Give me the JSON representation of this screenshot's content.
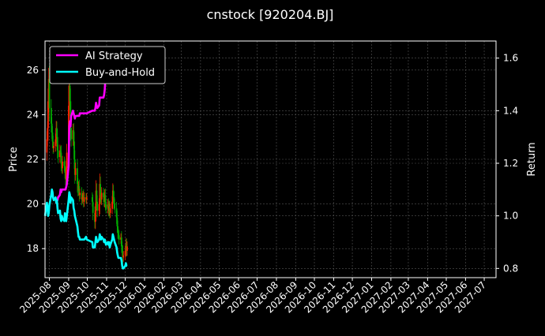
{
  "chart_data": {
    "type": "line",
    "title": "cnstock [920204.BJ]",
    "ylabel_left": "Price",
    "ylabel_right": "Return",
    "grid": true,
    "legend_position": "top-left",
    "colors": {
      "background": "#000000",
      "foreground": "#ffffff",
      "grid": "#555555",
      "candle_up": "#ff2200",
      "candle_down": "#00aa00",
      "ai_strategy": "#ff00ff",
      "buy_hold": "#00ffff"
    },
    "x_range": [
      "2025-07-25",
      "2027-07-20"
    ],
    "price_ylim": [
      16.7,
      27.3
    ],
    "return_ylim": [
      0.765,
      1.665
    ],
    "x_tick_labels": [
      "2025-08",
      "2025-09",
      "2025-10",
      "2025-11",
      "2025-12",
      "2026-01",
      "2026-02",
      "2026-03",
      "2026-04",
      "2026-05",
      "2026-06",
      "2026-07",
      "2026-08",
      "2026-09",
      "2026-10",
      "2026-11",
      "2026-12",
      "2027-01",
      "2027-02",
      "2027-03",
      "2027-04",
      "2027-05",
      "2027-06",
      "2027-07"
    ],
    "price_ticks": [
      "18",
      "20",
      "22",
      "24",
      "26"
    ],
    "return_ticks": [
      "0.8",
      "1.0",
      "1.2",
      "1.4",
      "1.6"
    ],
    "price_close": [
      {
        "date": "2025-07-25",
        "close": 22.3
      },
      {
        "date": "2025-07-28",
        "close": 22.9
      },
      {
        "date": "2025-07-29",
        "close": 23.4
      },
      {
        "date": "2025-07-30",
        "close": 24.6
      },
      {
        "date": "2025-07-31",
        "close": 25.6
      },
      {
        "date": "2025-08-01",
        "close": 24.3
      },
      {
        "date": "2025-08-04",
        "close": 23.6
      },
      {
        "date": "2025-08-05",
        "close": 23.2
      },
      {
        "date": "2025-08-06",
        "close": 22.8
      },
      {
        "date": "2025-08-07",
        "close": 22.5
      },
      {
        "date": "2025-08-08",
        "close": 22.6
      },
      {
        "date": "2025-08-11",
        "close": 22.9
      },
      {
        "date": "2025-08-12",
        "close": 23.4
      },
      {
        "date": "2025-08-13",
        "close": 23.0
      },
      {
        "date": "2025-08-14",
        "close": 22.4
      },
      {
        "date": "2025-08-15",
        "close": 22.1
      },
      {
        "date": "2025-08-18",
        "close": 22.4
      },
      {
        "date": "2025-08-19",
        "close": 22.3
      },
      {
        "date": "2025-08-20",
        "close": 21.8
      },
      {
        "date": "2025-08-21",
        "close": 21.6
      },
      {
        "date": "2025-08-22",
        "close": 21.9
      },
      {
        "date": "2025-08-25",
        "close": 21.7
      },
      {
        "date": "2025-08-26",
        "close": 21.4
      },
      {
        "date": "2025-08-27",
        "close": 21.1
      },
      {
        "date": "2025-08-28",
        "close": 21.6
      },
      {
        "date": "2025-08-29",
        "close": 22.3
      },
      {
        "date": "2025-09-01",
        "close": 24.4
      },
      {
        "date": "2025-09-02",
        "close": 25.3
      },
      {
        "date": "2025-09-03",
        "close": 24.6
      },
      {
        "date": "2025-09-04",
        "close": 23.4
      },
      {
        "date": "2025-09-05",
        "close": 22.9
      },
      {
        "date": "2025-09-08",
        "close": 23.3
      },
      {
        "date": "2025-09-09",
        "close": 22.8
      },
      {
        "date": "2025-09-10",
        "close": 22.0
      },
      {
        "date": "2025-09-11",
        "close": 21.3
      },
      {
        "date": "2025-09-12",
        "close": 21.6
      },
      {
        "date": "2025-09-15",
        "close": 20.9
      },
      {
        "date": "2025-09-16",
        "close": 20.6
      },
      {
        "date": "2025-09-17",
        "close": 20.8
      },
      {
        "date": "2025-09-18",
        "close": 20.4
      },
      {
        "date": "2025-09-19",
        "close": 20.5
      },
      {
        "date": "2025-09-22",
        "close": 20.2
      },
      {
        "date": "2025-09-23",
        "close": 20.3
      },
      {
        "date": "2025-09-24",
        "close": 20.4
      },
      {
        "date": "2025-09-25",
        "close": 20.1
      },
      {
        "date": "2025-09-26",
        "close": 20.3
      },
      {
        "date": "2025-09-29",
        "close": 20.2
      },
      {
        "date": "2025-09-30",
        "close": 20.3
      },
      {
        "date": "2025-10-09",
        "close": 20.1
      },
      {
        "date": "2025-10-10",
        "close": 19.6
      },
      {
        "date": "2025-10-13",
        "close": 19.2
      },
      {
        "date": "2025-10-14",
        "close": 19.7
      },
      {
        "date": "2025-10-15",
        "close": 20.6
      },
      {
        "date": "2025-10-16",
        "close": 20.1
      },
      {
        "date": "2025-10-17",
        "close": 19.7
      },
      {
        "date": "2025-10-20",
        "close": 20.0
      },
      {
        "date": "2025-10-21",
        "close": 20.9
      },
      {
        "date": "2025-10-22",
        "close": 20.4
      },
      {
        "date": "2025-10-23",
        "close": 20.2
      },
      {
        "date": "2025-10-24",
        "close": 20.5
      },
      {
        "date": "2025-10-27",
        "close": 20.3
      },
      {
        "date": "2025-10-28",
        "close": 20.1
      },
      {
        "date": "2025-10-29",
        "close": 20.4
      },
      {
        "date": "2025-10-30",
        "close": 20.0
      },
      {
        "date": "2025-10-31",
        "close": 19.8
      },
      {
        "date": "2025-11-03",
        "close": 20.0
      },
      {
        "date": "2025-11-04",
        "close": 19.7
      },
      {
        "date": "2025-11-05",
        "close": 19.9
      },
      {
        "date": "2025-11-06",
        "close": 19.6
      },
      {
        "date": "2025-11-07",
        "close": 19.8
      },
      {
        "date": "2025-11-10",
        "close": 20.1
      },
      {
        "date": "2025-11-11",
        "close": 20.6
      },
      {
        "date": "2025-11-12",
        "close": 20.3
      },
      {
        "date": "2025-11-13",
        "close": 20.0
      },
      {
        "date": "2025-11-14",
        "close": 19.8
      },
      {
        "date": "2025-11-17",
        "close": 19.4
      },
      {
        "date": "2025-11-18",
        "close": 19.0
      },
      {
        "date": "2025-11-19",
        "close": 18.7
      },
      {
        "date": "2025-11-20",
        "close": 18.6
      },
      {
        "date": "2025-11-21",
        "close": 18.4
      },
      {
        "date": "2025-11-24",
        "close": 18.5
      },
      {
        "date": "2025-11-25",
        "close": 18.1
      },
      {
        "date": "2025-11-26",
        "close": 17.9
      },
      {
        "date": "2025-11-27",
        "close": 17.6
      },
      {
        "date": "2025-11-28",
        "close": 17.7
      },
      {
        "date": "2025-12-01",
        "close": 17.9
      },
      {
        "date": "2025-12-02",
        "close": 18.2
      },
      {
        "date": "2025-12-03",
        "close": 17.9
      },
      {
        "date": "2025-12-04",
        "close": 18.1
      }
    ],
    "series": [
      {
        "name": "AI Strategy",
        "points": [
          {
            "date": "2025-08-11",
            "value": 1.06
          },
          {
            "date": "2025-08-14",
            "value": 1.06
          },
          {
            "date": "2025-08-15",
            "value": 1.07
          },
          {
            "date": "2025-08-18",
            "value": 1.08
          },
          {
            "date": "2025-08-19",
            "value": 1.1
          },
          {
            "date": "2025-08-20",
            "value": 1.09
          },
          {
            "date": "2025-08-21",
            "value": 1.1
          },
          {
            "date": "2025-08-22",
            "value": 1.1
          },
          {
            "date": "2025-08-25",
            "value": 1.1
          },
          {
            "date": "2025-08-26",
            "value": 1.1
          },
          {
            "date": "2025-08-27",
            "value": 1.1
          },
          {
            "date": "2025-08-28",
            "value": 1.11
          },
          {
            "date": "2025-08-29",
            "value": 1.12
          },
          {
            "date": "2025-09-01",
            "value": 1.19
          },
          {
            "date": "2025-09-02",
            "value": 1.34
          },
          {
            "date": "2025-09-03",
            "value": 1.36
          },
          {
            "date": "2025-09-04",
            "value": 1.34
          },
          {
            "date": "2025-09-05",
            "value": 1.38
          },
          {
            "date": "2025-09-08",
            "value": 1.4
          },
          {
            "date": "2025-09-09",
            "value": 1.39
          },
          {
            "date": "2025-09-10",
            "value": 1.38
          },
          {
            "date": "2025-09-11",
            "value": 1.37
          },
          {
            "date": "2025-09-12",
            "value": 1.38
          },
          {
            "date": "2025-09-15",
            "value": 1.38
          },
          {
            "date": "2025-09-16",
            "value": 1.38
          },
          {
            "date": "2025-09-17",
            "value": 1.38
          },
          {
            "date": "2025-09-18",
            "value": 1.38
          },
          {
            "date": "2025-09-19",
            "value": 1.39
          },
          {
            "date": "2025-09-22",
            "value": 1.39
          },
          {
            "date": "2025-09-23",
            "value": 1.39
          },
          {
            "date": "2025-09-24",
            "value": 1.39
          },
          {
            "date": "2025-09-25",
            "value": 1.39
          },
          {
            "date": "2025-09-26",
            "value": 1.39
          },
          {
            "date": "2025-09-29",
            "value": 1.39
          },
          {
            "date": "2025-09-30",
            "value": 1.39
          },
          {
            "date": "2025-10-09",
            "value": 1.4
          },
          {
            "date": "2025-10-10",
            "value": 1.4
          },
          {
            "date": "2025-10-13",
            "value": 1.4
          },
          {
            "date": "2025-10-14",
            "value": 1.41
          },
          {
            "date": "2025-10-15",
            "value": 1.43
          },
          {
            "date": "2025-10-16",
            "value": 1.42
          },
          {
            "date": "2025-10-17",
            "value": 1.41
          },
          {
            "date": "2025-10-20",
            "value": 1.42
          },
          {
            "date": "2025-10-21",
            "value": 1.45
          },
          {
            "date": "2025-10-22",
            "value": 1.45
          },
          {
            "date": "2025-10-23",
            "value": 1.45
          },
          {
            "date": "2025-10-24",
            "value": 1.45
          },
          {
            "date": "2025-10-27",
            "value": 1.45
          },
          {
            "date": "2025-10-28",
            "value": 1.46
          },
          {
            "date": "2025-10-29",
            "value": 1.48
          },
          {
            "date": "2025-10-30",
            "value": 1.52
          },
          {
            "date": "2025-10-31",
            "value": 1.55
          },
          {
            "date": "2025-11-03",
            "value": 1.56
          },
          {
            "date": "2025-11-04",
            "value": 1.57
          },
          {
            "date": "2025-11-05",
            "value": 1.58
          }
        ]
      },
      {
        "name": "Buy-and-Hold",
        "points": [
          {
            "date": "2025-07-25",
            "value": 1.0
          },
          {
            "date": "2025-07-28",
            "value": 1.05
          },
          {
            "date": "2025-07-29",
            "value": 1.03
          },
          {
            "date": "2025-07-30",
            "value": 1.0
          },
          {
            "date": "2025-07-31",
            "value": 1.01
          },
          {
            "date": "2025-08-01",
            "value": 1.04
          },
          {
            "date": "2025-08-04",
            "value": 1.08
          },
          {
            "date": "2025-08-05",
            "value": 1.1
          },
          {
            "date": "2025-08-06",
            "value": 1.09
          },
          {
            "date": "2025-08-07",
            "value": 1.07
          },
          {
            "date": "2025-08-08",
            "value": 1.06
          },
          {
            "date": "2025-08-11",
            "value": 1.07
          },
          {
            "date": "2025-08-12",
            "value": 1.05
          },
          {
            "date": "2025-08-13",
            "value": 1.06
          },
          {
            "date": "2025-08-14",
            "value": 1.03
          },
          {
            "date": "2025-08-15",
            "value": 1.01
          },
          {
            "date": "2025-08-18",
            "value": 1.02
          },
          {
            "date": "2025-08-19",
            "value": 0.99
          },
          {
            "date": "2025-08-20",
            "value": 0.98
          },
          {
            "date": "2025-08-21",
            "value": 1.0
          },
          {
            "date": "2025-08-22",
            "value": 0.99
          },
          {
            "date": "2025-08-25",
            "value": 0.98
          },
          {
            "date": "2025-08-26",
            "value": 1.01
          },
          {
            "date": "2025-08-27",
            "value": 0.99
          },
          {
            "date": "2025-08-28",
            "value": 0.98
          },
          {
            "date": "2025-08-29",
            "value": 1.0
          },
          {
            "date": "2025-09-01",
            "value": 1.06
          },
          {
            "date": "2025-09-02",
            "value": 1.09
          },
          {
            "date": "2025-09-03",
            "value": 1.08
          },
          {
            "date": "2025-09-04",
            "value": 1.05
          },
          {
            "date": "2025-09-05",
            "value": 1.07
          },
          {
            "date": "2025-09-08",
            "value": 1.06
          },
          {
            "date": "2025-09-09",
            "value": 1.03
          },
          {
            "date": "2025-09-10",
            "value": 1.02
          },
          {
            "date": "2025-09-11",
            "value": 1.0
          },
          {
            "date": "2025-09-12",
            "value": 0.99
          },
          {
            "date": "2025-09-15",
            "value": 0.96
          },
          {
            "date": "2025-09-16",
            "value": 0.94
          },
          {
            "date": "2025-09-17",
            "value": 0.92
          },
          {
            "date": "2025-09-18",
            "value": 0.92
          },
          {
            "date": "2025-09-19",
            "value": 0.91
          },
          {
            "date": "2025-09-22",
            "value": 0.91
          },
          {
            "date": "2025-09-23",
            "value": 0.91
          },
          {
            "date": "2025-09-24",
            "value": 0.91
          },
          {
            "date": "2025-09-25",
            "value": 0.91
          },
          {
            "date": "2025-09-26",
            "value": 0.91
          },
          {
            "date": "2025-09-29",
            "value": 0.92
          },
          {
            "date": "2025-09-30",
            "value": 0.91
          },
          {
            "date": "2025-10-09",
            "value": 0.9
          },
          {
            "date": "2025-10-10",
            "value": 0.88
          },
          {
            "date": "2025-10-13",
            "value": 0.88
          },
          {
            "date": "2025-10-14",
            "value": 0.9
          },
          {
            "date": "2025-10-15",
            "value": 0.92
          },
          {
            "date": "2025-10-16",
            "value": 0.91
          },
          {
            "date": "2025-10-17",
            "value": 0.9
          },
          {
            "date": "2025-10-20",
            "value": 0.91
          },
          {
            "date": "2025-10-21",
            "value": 0.93
          },
          {
            "date": "2025-10-22",
            "value": 0.92
          },
          {
            "date": "2025-10-23",
            "value": 0.91
          },
          {
            "date": "2025-10-24",
            "value": 0.92
          },
          {
            "date": "2025-10-27",
            "value": 0.91
          },
          {
            "date": "2025-10-28",
            "value": 0.9
          },
          {
            "date": "2025-10-29",
            "value": 0.91
          },
          {
            "date": "2025-10-30",
            "value": 0.9
          },
          {
            "date": "2025-10-31",
            "value": 0.89
          },
          {
            "date": "2025-11-03",
            "value": 0.9
          },
          {
            "date": "2025-11-04",
            "value": 0.89
          },
          {
            "date": "2025-11-05",
            "value": 0.9
          },
          {
            "date": "2025-11-06",
            "value": 0.88
          },
          {
            "date": "2025-11-07",
            "value": 0.89
          },
          {
            "date": "2025-11-10",
            "value": 0.91
          },
          {
            "date": "2025-11-11",
            "value": 0.93
          },
          {
            "date": "2025-11-12",
            "value": 0.92
          },
          {
            "date": "2025-11-13",
            "value": 0.91
          },
          {
            "date": "2025-11-14",
            "value": 0.9
          },
          {
            "date": "2025-11-17",
            "value": 0.88
          },
          {
            "date": "2025-11-18",
            "value": 0.86
          },
          {
            "date": "2025-11-19",
            "value": 0.85
          },
          {
            "date": "2025-11-20",
            "value": 0.84
          },
          {
            "date": "2025-11-21",
            "value": 0.84
          },
          {
            "date": "2025-11-24",
            "value": 0.84
          },
          {
            "date": "2025-11-25",
            "value": 0.83
          },
          {
            "date": "2025-11-26",
            "value": 0.81
          },
          {
            "date": "2025-11-27",
            "value": 0.8
          },
          {
            "date": "2025-11-28",
            "value": 0.8
          },
          {
            "date": "2025-12-01",
            "value": 0.81
          },
          {
            "date": "2025-12-02",
            "value": 0.82
          },
          {
            "date": "2025-12-03",
            "value": 0.81
          },
          {
            "date": "2025-12-04",
            "value": 0.81
          }
        ]
      }
    ]
  }
}
